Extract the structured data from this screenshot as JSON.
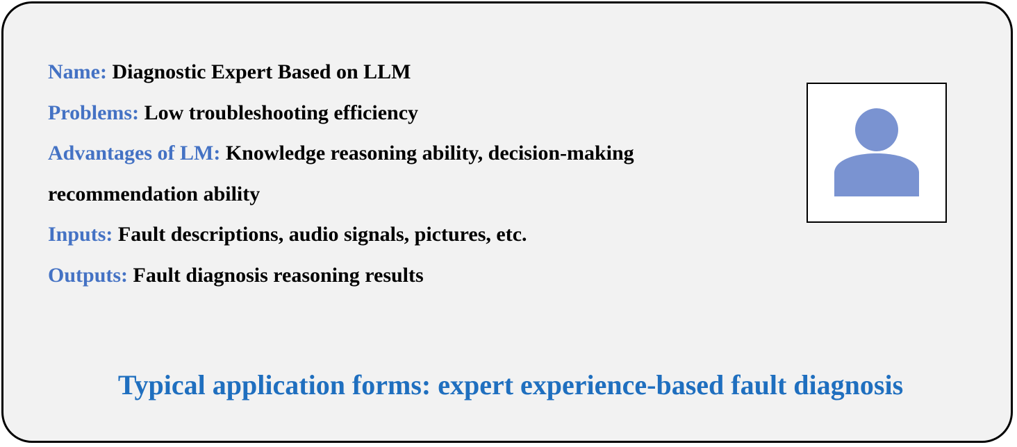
{
  "card": {
    "name": {
      "label": "Name:",
      "value": "Diagnostic Expert Based on LLM"
    },
    "problems": {
      "label": "Problems:",
      "value": "Low troubleshooting efficiency"
    },
    "advantages": {
      "label": "Advantages of LM:",
      "value": "Knowledge reasoning ability, decision-making",
      "value_cont": "recommendation ability"
    },
    "inputs": {
      "label": "Inputs:",
      "value": "Fault descriptions, audio signals, pictures, etc."
    },
    "outputs": {
      "label": "Outputs:",
      "value": "Fault diagnosis reasoning results"
    },
    "footer": "Typical application forms: expert experience-based fault diagnosis"
  },
  "colors": {
    "label": "#4472c4",
    "footer": "#1f6fbf",
    "avatar": "#7a93d1",
    "card_bg": "#f2f2f2"
  },
  "icons": {
    "avatar": "user-avatar-icon"
  }
}
